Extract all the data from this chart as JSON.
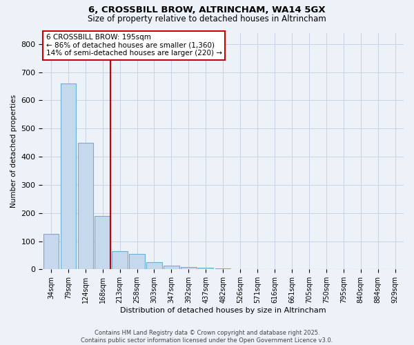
{
  "title_line1": "6, CROSSBILL BROW, ALTRINCHAM, WA14 5GX",
  "title_line2": "Size of property relative to detached houses in Altrincham",
  "xlabel": "Distribution of detached houses by size in Altrincham",
  "ylabel": "Number of detached properties",
  "bar_labels": [
    "34sqm",
    "79sqm",
    "124sqm",
    "168sqm",
    "213sqm",
    "258sqm",
    "303sqm",
    "347sqm",
    "392sqm",
    "437sqm",
    "482sqm",
    "526sqm",
    "571sqm",
    "616sqm",
    "661sqm",
    "705sqm",
    "750sqm",
    "795sqm",
    "840sqm",
    "884sqm",
    "929sqm"
  ],
  "bar_values": [
    125,
    660,
    450,
    190,
    65,
    55,
    25,
    14,
    8,
    5,
    3,
    2,
    1,
    0,
    0,
    0,
    0,
    0,
    0,
    0,
    0
  ],
  "bar_color": "#c5d8ec",
  "bar_edge_color": "#6aafd6",
  "vline_color": "#cc0000",
  "vline_pos": 3.47,
  "ylim_max": 840,
  "yticks": [
    0,
    100,
    200,
    300,
    400,
    500,
    600,
    700,
    800
  ],
  "annotation_text": "6 CROSSBILL BROW: 195sqm\n← 86% of detached houses are smaller (1,360)\n14% of semi-detached houses are larger (220) →",
  "footer_line1": "Contains HM Land Registry data © Crown copyright and database right 2025.",
  "footer_line2": "Contains public sector information licensed under the Open Government Licence v3.0.",
  "bg_color": "#edf1f8",
  "grid_color": "#c8d3e3"
}
